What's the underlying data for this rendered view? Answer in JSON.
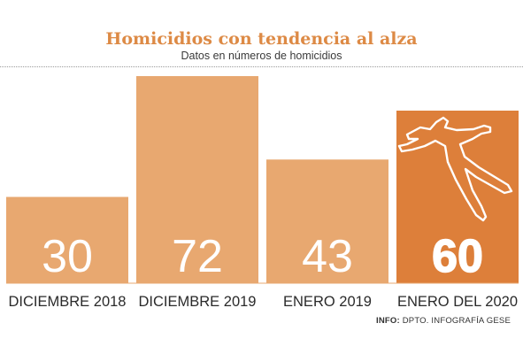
{
  "chart_data": {
    "type": "bar",
    "title": "Homicidios con tendencia al alza",
    "subtitle": "Datos en números de homicidios",
    "categories": [
      "DICIEMBRE 2018",
      "DICIEMBRE 2019",
      "ENERO 2019",
      "ENERO DEL 2020"
    ],
    "values": [
      30,
      72,
      43,
      60
    ],
    "data_labels": [
      "30",
      "72",
      "43",
      "60"
    ],
    "highlight_index": 3,
    "ylim": [
      0,
      72
    ],
    "grid": false,
    "legend": "none",
    "colors": {
      "bar": "#e8a870",
      "highlight": "#dd7f3a",
      "label": "#ffffff",
      "highlight_outline": "#ffffff",
      "axis_text": "#2a2a2a",
      "title": "#dd8a45"
    },
    "icon": "crime-scene-body-outline-icon"
  },
  "source": {
    "label": "INFO:",
    "text": "DPTO. INFOGRAFÍA GESE"
  }
}
